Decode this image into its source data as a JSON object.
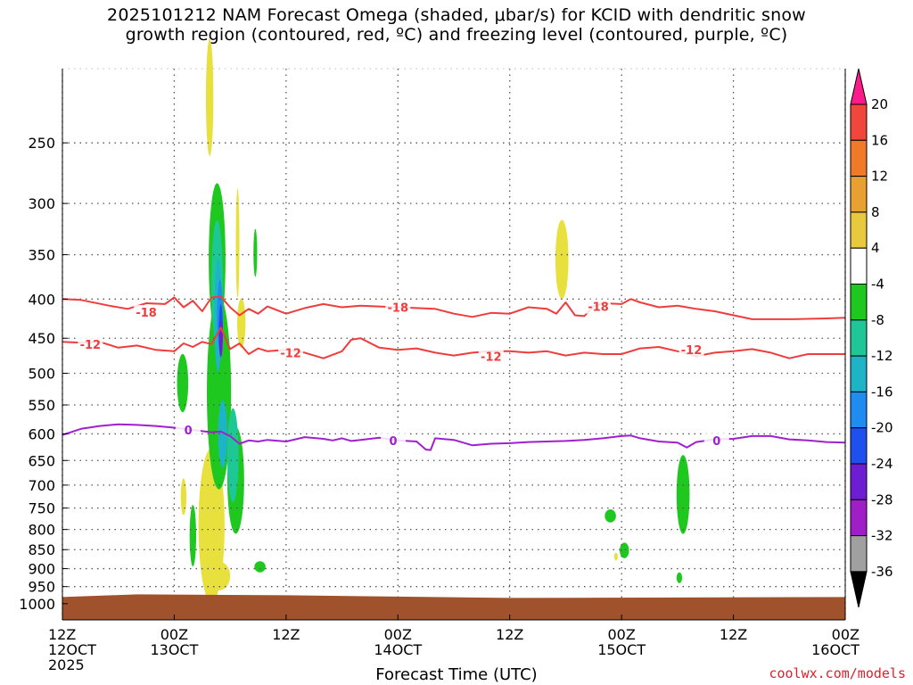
{
  "title": {
    "line1": "2025101212 NAM Forecast Omega (shaded, μbar/s) for KCID with dendritic snow",
    "line2": "growth region (contoured, red, ºC) and freezing level (contoured, purple, ºC)"
  },
  "credit": "coolwx.com/models",
  "chart_data": {
    "type": "heatmap",
    "title": "2025101212 NAM Forecast Omega (shaded, μbar/s) for KCID with dendritic snow growth region (contoured, red, ºC) and freezing level (contoured, purple, ºC)",
    "xlabel": "Forecast Time (UTC)",
    "ylabel": "",
    "x_ticks": [
      {
        "hour": 0,
        "l1": "12Z",
        "l2": "12OCT",
        "l3": "2025"
      },
      {
        "hour": 12,
        "l1": "00Z",
        "l2": "13OCT",
        "l3": ""
      },
      {
        "hour": 24,
        "l1": "12Z",
        "l2": "",
        "l3": ""
      },
      {
        "hour": 36,
        "l1": "00Z",
        "l2": "14OCT",
        "l3": ""
      },
      {
        "hour": 48,
        "l1": "12Z",
        "l2": "",
        "l3": ""
      },
      {
        "hour": 60,
        "l1": "00Z",
        "l2": "15OCT",
        "l3": ""
      },
      {
        "hour": 72,
        "l1": "12Z",
        "l2": "",
        "l3": ""
      },
      {
        "hour": 84,
        "l1": "00Z",
        "l2": "16OCT",
        "l3": ""
      }
    ],
    "xlim": [
      0,
      84
    ],
    "y_ticks": [
      250,
      300,
      350,
      400,
      450,
      500,
      550,
      600,
      650,
      700,
      750,
      800,
      850,
      900,
      950,
      1000
    ],
    "ylim": [
      1050,
      200
    ],
    "y_scale": "log-pressure",
    "grid": true,
    "colorbar": {
      "labels": [
        "20",
        "16",
        "12",
        "8",
        "4",
        "-4",
        "-8",
        "-12",
        "-16",
        "-20",
        "-24",
        "-28",
        "-32",
        "-36"
      ],
      "colors": [
        "#ff1a8c",
        "#f0463c",
        "#f07a28",
        "#e8a030",
        "#e8c83c",
        "#ffffff",
        "#1ec81e",
        "#1ec896",
        "#1eb4c8",
        "#1e8cf0",
        "#1e50f0",
        "#6e1ed2",
        "#a01ec8",
        "#a0a0a0",
        "#000000"
      ]
    },
    "surface": {
      "pressure": 975,
      "color": "#a0522d"
    },
    "series": [
      {
        "name": "-18",
        "color": "#f03c3c",
        "x": [
          0,
          2,
          5,
          7,
          9,
          11,
          12,
          13,
          14,
          15,
          16,
          17,
          18,
          19,
          20,
          21,
          22,
          24,
          26,
          28,
          30,
          32,
          36,
          40,
          42,
          44,
          46,
          48,
          50,
          52,
          53,
          54,
          55,
          56,
          57,
          58,
          60,
          61,
          62,
          64,
          66,
          68,
          70,
          74,
          78,
          82,
          84
        ],
        "y": [
          400,
          401,
          408,
          412,
          405,
          406,
          398,
          410,
          402,
          415,
          398,
          397,
          410,
          420,
          412,
          418,
          409,
          418,
          411,
          406,
          410,
          408,
          410,
          412,
          418,
          422,
          417,
          418,
          410,
          412,
          418,
          404,
          420,
          421,
          409,
          405,
          406,
          400,
          404,
          410,
          408,
          412,
          415,
          425,
          425,
          424,
          423
        ],
        "labels": [
          {
            "x": 9,
            "y": 416,
            "text": "-18"
          },
          {
            "x": 36,
            "y": 410,
            "text": "-18"
          },
          {
            "x": 57.5,
            "y": 409,
            "text": "-18"
          }
        ]
      },
      {
        "name": "-12",
        "color": "#f03c3c",
        "x": [
          0,
          2,
          4,
          6,
          8,
          10,
          12,
          13,
          14,
          15,
          16,
          17,
          18,
          19,
          20,
          21,
          22,
          24,
          26,
          28,
          30,
          31,
          32,
          34,
          36,
          38,
          40,
          42,
          44,
          46,
          48,
          50,
          52,
          54,
          56,
          58,
          60,
          62,
          64,
          66,
          68,
          70,
          72,
          74,
          76,
          78,
          80,
          84
        ],
        "y": [
          455,
          456,
          455,
          463,
          460,
          466,
          468,
          457,
          462,
          455,
          458,
          436,
          465,
          457,
          472,
          464,
          468,
          466,
          470,
          478,
          468,
          452,
          450,
          463,
          466,
          464,
          470,
          474,
          470,
          468,
          468,
          470,
          468,
          474,
          470,
          472,
          472,
          464,
          462,
          468,
          475,
          470,
          468,
          465,
          470,
          478,
          472,
          472
        ],
        "labels": [
          {
            "x": 3,
            "y": 458,
            "text": "-12"
          },
          {
            "x": 24.5,
            "y": 470,
            "text": "-12"
          },
          {
            "x": 46,
            "y": 475,
            "text": "-12"
          },
          {
            "x": 67.5,
            "y": 466,
            "text": "-12"
          }
        ]
      },
      {
        "name": "0",
        "color": "#a020d0",
        "x": [
          0,
          2,
          4,
          6,
          8,
          10,
          12,
          14,
          16,
          17,
          18,
          19,
          20,
          21,
          22,
          24,
          26,
          28,
          29,
          30,
          31,
          32,
          34,
          36,
          38,
          39,
          39.5,
          40,
          42,
          44,
          46,
          48,
          50,
          52,
          54,
          56,
          58,
          60,
          61,
          62,
          64,
          66,
          67,
          68,
          70,
          72,
          74,
          76,
          78,
          80,
          82,
          84
        ],
        "y": [
          602,
          591,
          586,
          583,
          584,
          586,
          589,
          593,
          597,
          596,
          604,
          618,
          612,
          614,
          611,
          614,
          606,
          609,
          612,
          608,
          613,
          611,
          607,
          612,
          614,
          629,
          630,
          608,
          611,
          621,
          618,
          617,
          615,
          614,
          613,
          611,
          608,
          604,
          603,
          608,
          614,
          616,
          625,
          615,
          610,
          609,
          604,
          604,
          610,
          612,
          615,
          616
        ],
        "labels": [
          {
            "x": 13.5,
            "y": 593,
            "text": "0"
          },
          {
            "x": 35.5,
            "y": 612,
            "text": "0"
          },
          {
            "x": 70.2,
            "y": 612,
            "text": "0"
          }
        ]
      }
    ],
    "shaded_regions": [
      {
        "level": "4",
        "color": "#e8e03c",
        "x": 15.8,
        "p": 218,
        "dx": 0.4,
        "dp": 38
      },
      {
        "level": "4",
        "color": "#e8e03c",
        "x": 16,
        "p": 790,
        "dx": 1.4,
        "dp": 180
      },
      {
        "level": "4",
        "color": "#e8e03c",
        "x": 16.8,
        "p": 920,
        "dx": 1.2,
        "dp": 40
      },
      {
        "level": "4",
        "color": "#e8e03c",
        "x": 13,
        "p": 725,
        "dx": 0.3,
        "dp": 40
      },
      {
        "level": "4",
        "color": "#e8e03c",
        "x": 19.2,
        "p": 430,
        "dx": 0.45,
        "dp": 32
      },
      {
        "level": "4",
        "color": "#e8e03c",
        "x": 18.8,
        "p": 338,
        "dx": 0.12,
        "dp": 55
      },
      {
        "level": "4",
        "color": "#e8e03c",
        "x": 53.6,
        "p": 355,
        "dx": 0.7,
        "dp": 42
      },
      {
        "level": "4",
        "color": "#e8e03c",
        "x": 59.4,
        "p": 868,
        "dx": 0.1,
        "dp": 10
      },
      {
        "level": "-4",
        "color": "#1ec81e",
        "x": 16.6,
        "p": 355,
        "dx": 0.9,
        "dp": 80
      },
      {
        "level": "-4",
        "color": "#1ec81e",
        "x": 16.8,
        "p": 530,
        "dx": 1.3,
        "dp": 150
      },
      {
        "level": "-4",
        "color": "#1ec81e",
        "x": 18.6,
        "p": 690,
        "dx": 0.9,
        "dp": 110
      },
      {
        "level": "-4",
        "color": "#1ec81e",
        "x": 12.9,
        "p": 515,
        "dx": 0.6,
        "dp": 45
      },
      {
        "level": "-4",
        "color": "#1ec81e",
        "x": 14,
        "p": 815,
        "dx": 0.35,
        "dp": 75
      },
      {
        "level": "-4",
        "color": "#1ec81e",
        "x": 20.7,
        "p": 348,
        "dx": 0.2,
        "dp": 25
      },
      {
        "level": "-4",
        "color": "#1ec81e",
        "x": 21.2,
        "p": 895,
        "dx": 0.6,
        "dp": 15
      },
      {
        "level": "-4",
        "color": "#1ec81e",
        "x": 58.8,
        "p": 768,
        "dx": 0.6,
        "dp": 15
      },
      {
        "level": "-4",
        "color": "#1ec81e",
        "x": 60.3,
        "p": 852,
        "dx": 0.5,
        "dp": 20
      },
      {
        "level": "-4",
        "color": "#1ec81e",
        "x": 66.6,
        "p": 720,
        "dx": 0.7,
        "dp": 85
      },
      {
        "level": "-4",
        "color": "#1ec81e",
        "x": 66.2,
        "p": 925,
        "dx": 0.3,
        "dp": 15
      },
      {
        "level": "-8",
        "color": "#1ec896",
        "x": 16.6,
        "p": 380,
        "dx": 0.6,
        "dp": 70
      },
      {
        "level": "-8",
        "color": "#1ec896",
        "x": 18.3,
        "p": 640,
        "dx": 0.6,
        "dp": 90
      },
      {
        "level": "-12",
        "color": "#1eb4c8",
        "x": 16.7,
        "p": 420,
        "dx": 0.4,
        "dp": 70
      },
      {
        "level": "-12",
        "color": "#1eb4c8",
        "x": 17.2,
        "p": 600,
        "dx": 0.5,
        "dp": 60
      },
      {
        "level": "-16",
        "color": "#1e8cf0",
        "x": 16.9,
        "p": 420,
        "dx": 0.3,
        "dp": 45
      },
      {
        "level": "-20",
        "color": "#1e50f0",
        "x": 17.0,
        "p": 440,
        "dx": 0.22,
        "dp": 35
      },
      {
        "level": "-24",
        "color": "#6e1ed2",
        "x": 17.0,
        "p": 450,
        "dx": 0.15,
        "dp": 25
      }
    ]
  }
}
